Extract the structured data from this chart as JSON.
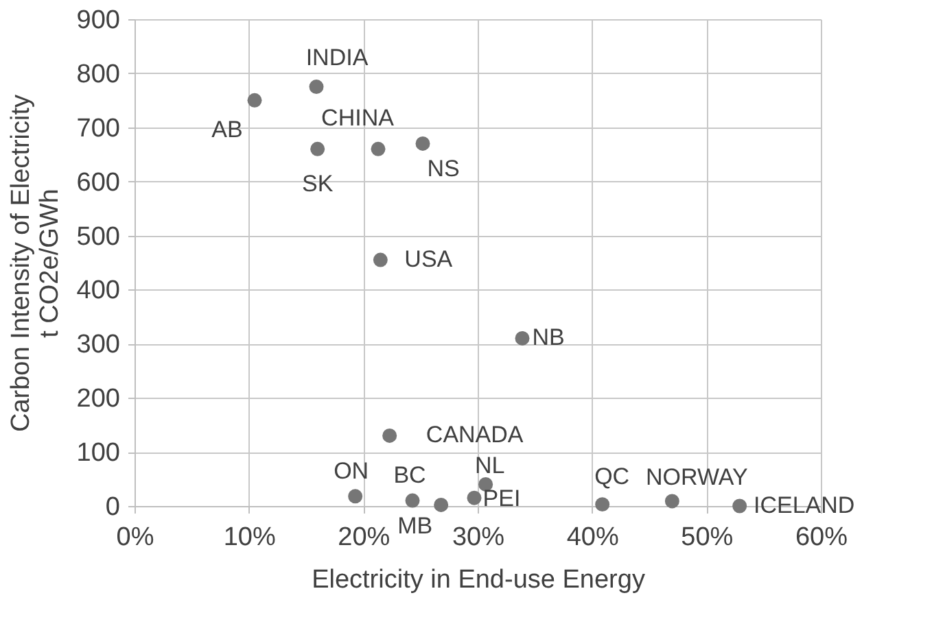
{
  "chart_data": {
    "type": "scatter",
    "xlabel": "Electricity in End-use Energy",
    "ylabel": "Carbon Intensity of Electricity\nt CO2e/GWh",
    "x": [
      10.5,
      15.9,
      16.0,
      21.3,
      25.2,
      21.5,
      33.9,
      22.3,
      19.3,
      24.3,
      26.8,
      29.7,
      30.7,
      40.9,
      47.0,
      52.9
    ],
    "values": [
      750,
      775,
      660,
      660,
      670,
      455,
      310,
      130,
      18,
      10,
      2,
      15,
      40,
      3,
      9,
      0
    ],
    "color": "#767676",
    "marker": "circle",
    "xlim": [
      0,
      60
    ],
    "xticks": [
      {
        "value": 0,
        "label": "0%"
      },
      {
        "value": 10,
        "label": "10%"
      },
      {
        "value": 20,
        "label": "20%"
      },
      {
        "value": 30,
        "label": "30%"
      },
      {
        "value": 40,
        "label": "40%"
      },
      {
        "value": 50,
        "label": "50%"
      },
      {
        "value": 60,
        "label": "60%"
      }
    ],
    "ylim": [
      0,
      900
    ],
    "yticks": [
      0,
      100,
      200,
      300,
      400,
      500,
      600,
      700,
      800,
      900
    ],
    "grid": true,
    "annotations": [
      {
        "text": "AB",
        "x": 10.5,
        "y": 750
      },
      {
        "text": "INDIA",
        "x": 15.9,
        "y": 775
      },
      {
        "text": "SK",
        "x": 16.0,
        "y": 660
      },
      {
        "text": "CHINA",
        "x": 21.3,
        "y": 660
      },
      {
        "text": "NS",
        "x": 25.2,
        "y": 670
      },
      {
        "text": "USA",
        "x": 21.5,
        "y": 455
      },
      {
        "text": "NB",
        "x": 33.9,
        "y": 310
      },
      {
        "text": "CANADA",
        "x": 22.3,
        "y": 130
      },
      {
        "text": "ON",
        "x": 19.3,
        "y": 18
      },
      {
        "text": "BC",
        "x": 24.3,
        "y": 10
      },
      {
        "text": "MB",
        "x": 26.8,
        "y": 2
      },
      {
        "text": "PEI",
        "x": 29.7,
        "y": 15
      },
      {
        "text": "NL",
        "x": 30.7,
        "y": 40
      },
      {
        "text": "QC",
        "x": 40.9,
        "y": 3
      },
      {
        "text": "NORWAY",
        "x": 47.0,
        "y": 9
      },
      {
        "text": "ICELAND",
        "x": 52.9,
        "y": 0
      }
    ]
  }
}
